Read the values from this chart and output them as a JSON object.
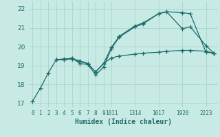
{
  "xlabel": "Humidex (Indice chaleur)",
  "bg_color": "#c8eae4",
  "grid_color": "#aad4cc",
  "line_color": "#1a6b6b",
  "xlim": [
    -0.5,
    23.5
  ],
  "ylim": [
    16.8,
    22.4
  ],
  "yticks": [
    17,
    18,
    19,
    20,
    21,
    22
  ],
  "xtick_labels": [
    "0",
    "1",
    "2",
    "3",
    "4",
    "5",
    "6",
    "7",
    "8",
    "9",
    "10",
    "11",
    "13",
    "14",
    "16",
    "17",
    "19",
    "20",
    "22",
    "23"
  ],
  "xtick_shown": [
    0,
    1,
    2,
    3,
    4,
    5,
    6,
    7,
    8,
    9,
    10,
    13,
    16,
    19,
    22
  ],
  "xtick_shown_labels": [
    "0",
    "1",
    "2",
    "3",
    "4",
    "5",
    "6",
    "7",
    "8",
    "9",
    "1011",
    "1314",
    "1617",
    "1920",
    "2223"
  ],
  "line1_x": [
    0,
    1,
    2,
    3,
    4,
    5,
    6,
    7,
    8,
    9,
    10,
    11,
    13,
    14,
    16,
    17,
    19,
    20,
    22,
    23
  ],
  "line1_y": [
    17.1,
    17.8,
    18.6,
    19.3,
    19.3,
    19.4,
    19.1,
    19.05,
    18.5,
    18.9,
    19.9,
    20.5,
    21.05,
    21.2,
    21.75,
    21.85,
    21.8,
    21.75,
    19.7,
    19.65
  ],
  "line2_x": [
    3,
    4,
    5,
    6,
    7,
    8,
    9,
    10,
    11,
    13,
    14,
    16,
    17,
    19,
    20,
    22,
    23
  ],
  "line2_y": [
    19.3,
    19.3,
    19.35,
    19.2,
    19.1,
    18.65,
    19.1,
    19.4,
    19.5,
    19.6,
    19.65,
    19.7,
    19.75,
    19.8,
    19.8,
    19.75,
    19.65
  ],
  "line3_x": [
    3,
    4,
    5,
    6,
    7,
    8,
    9,
    10,
    11,
    13,
    14,
    16,
    17,
    19,
    20,
    22,
    23
  ],
  "line3_y": [
    19.3,
    19.35,
    19.35,
    19.25,
    19.1,
    18.65,
    19.1,
    19.95,
    20.55,
    21.1,
    21.25,
    21.75,
    21.85,
    20.95,
    21.05,
    20.05,
    19.65
  ]
}
